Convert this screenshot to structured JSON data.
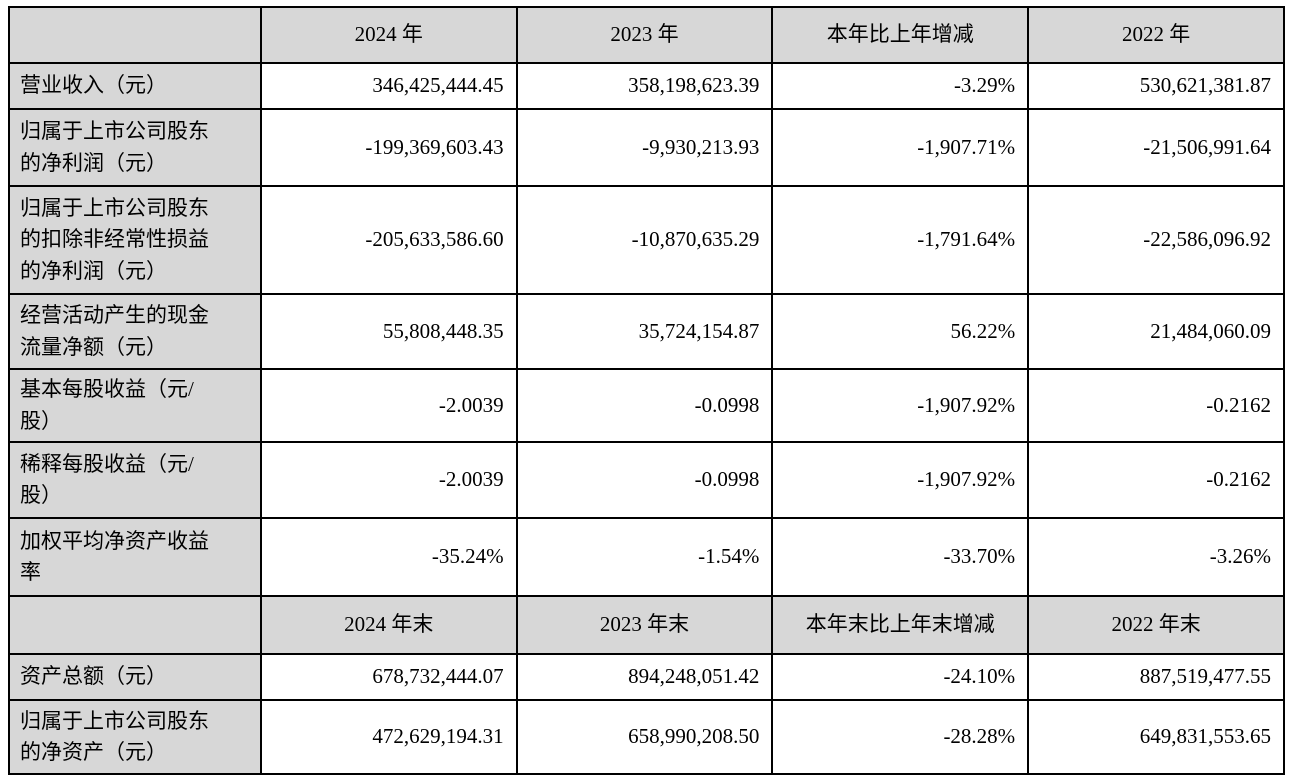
{
  "colors": {
    "header_background": "#d7d7d7",
    "label_background": "#d7d7d7",
    "border": "#000000",
    "cell_background": "#ffffff"
  },
  "table": {
    "section_annual": {
      "header": {
        "c1": "",
        "c2": "2024 年",
        "c3": "2023 年",
        "c4": "本年比上年增减",
        "c5": "2022 年"
      },
      "rows": [
        {
          "label": "营业收入（元）",
          "v1": "346,425,444.45",
          "v2": "358,198,623.39",
          "v3": "-3.29%",
          "v4": "530,621,381.87"
        },
        {
          "label": "归属于上市公司股东\n的净利润（元）",
          "v1": "-199,369,603.43",
          "v2": "-9,930,213.93",
          "v3": "-1,907.71%",
          "v4": "-21,506,991.64"
        },
        {
          "label": "归属于上市公司股东\n的扣除非经常性损益\n的净利润（元）",
          "v1": "-205,633,586.60",
          "v2": "-10,870,635.29",
          "v3": "-1,791.64%",
          "v4": "-22,586,096.92"
        },
        {
          "label": "经营活动产生的现金\n流量净额（元）",
          "v1": "55,808,448.35",
          "v2": "35,724,154.87",
          "v3": "56.22%",
          "v4": "21,484,060.09"
        },
        {
          "label": "基本每股收益（元/\n股）",
          "v1": "-2.0039",
          "v2": "-0.0998",
          "v3": "-1,907.92%",
          "v4": "-0.2162"
        },
        {
          "label": "稀释每股收益（元/\n股）",
          "v1": "-2.0039",
          "v2": "-0.0998",
          "v3": "-1,907.92%",
          "v4": "-0.2162"
        },
        {
          "label": "加权平均净资产收益\n率",
          "v1": "-35.24%",
          "v2": "-1.54%",
          "v3": "-33.70%",
          "v4": "-3.26%"
        }
      ]
    },
    "section_yearend": {
      "header": {
        "c1": "",
        "c2": "2024 年末",
        "c3": "2023 年末",
        "c4": "本年末比上年末增减",
        "c5": "2022 年末"
      },
      "rows": [
        {
          "label": "资产总额（元）",
          "v1": "678,732,444.07",
          "v2": "894,248,051.42",
          "v3": "-24.10%",
          "v4": "887,519,477.55"
        },
        {
          "label": "归属于上市公司股东\n的净资产（元）",
          "v1": "472,629,194.31",
          "v2": "658,990,208.50",
          "v3": "-28.28%",
          "v4": "649,831,553.65"
        }
      ]
    }
  }
}
